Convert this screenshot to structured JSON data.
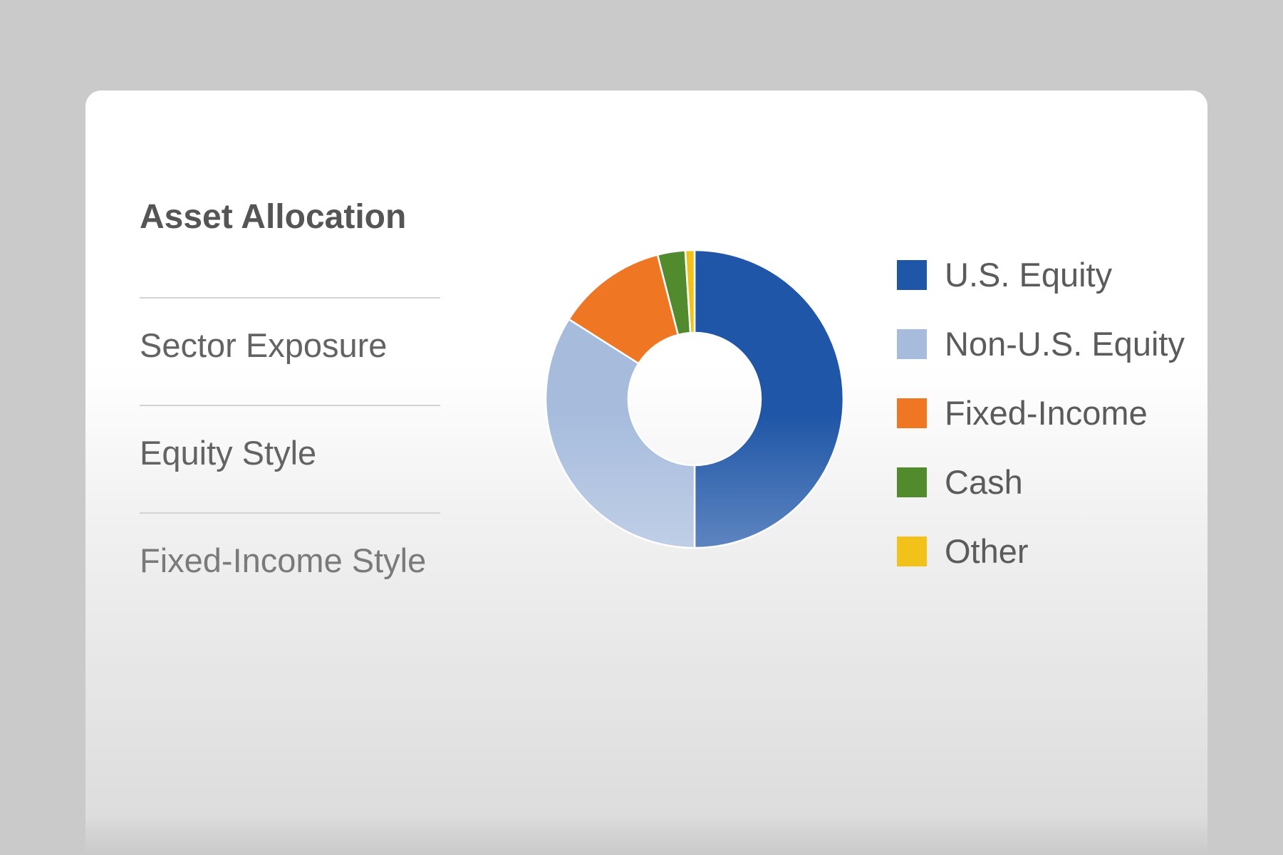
{
  "menu": {
    "items": [
      {
        "label": "Asset Allocation",
        "active": true
      },
      {
        "label": "Sector Exposure",
        "active": false
      },
      {
        "label": "Equity Style",
        "active": false
      },
      {
        "label": "Fixed-Income Style",
        "active": false
      }
    ]
  },
  "colors": {
    "us_equity": "#1f56a7",
    "non_us_equity": "#a7bcdd",
    "fixed_income": "#ef7623",
    "cash": "#528a2e",
    "other": "#f2c21a",
    "background": "#cacaca"
  },
  "chart_data": {
    "type": "pie",
    "donut": true,
    "categories": [
      "U.S. Equity",
      "Non-U.S. Equity",
      "Fixed-Income",
      "Cash",
      "Other"
    ],
    "values": [
      50,
      34,
      12,
      3,
      1
    ],
    "colors": [
      "#1f56a7",
      "#a7bcdd",
      "#ef7623",
      "#528a2e",
      "#f2c21a"
    ],
    "legend_position": "right"
  }
}
